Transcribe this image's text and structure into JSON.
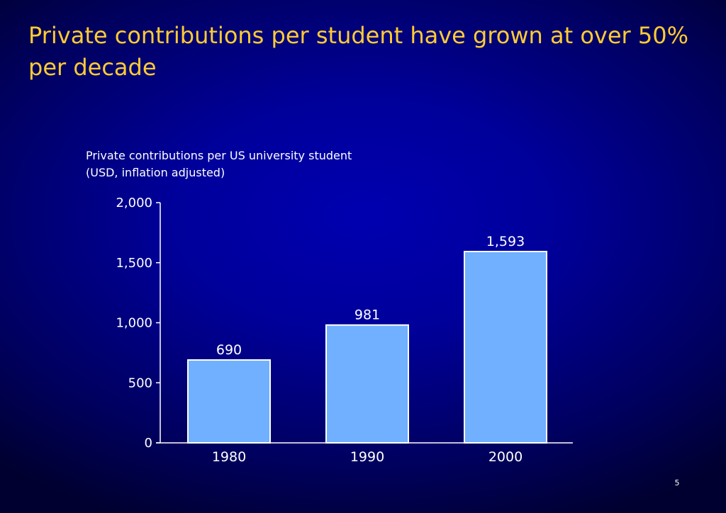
{
  "slide": {
    "title": "Private contributions per student have grown at over 50% per decade",
    "page_number": "5"
  },
  "chart_data": {
    "type": "bar",
    "title": "Private contributions per US university student (USD, inflation adjusted)",
    "xlabel": "",
    "ylabel": "",
    "categories": [
      "1980",
      "1990",
      "2000"
    ],
    "values": [
      690,
      981,
      1593
    ],
    "value_labels": [
      "690",
      "981",
      "1,593"
    ],
    "ylim": [
      0,
      2000
    ],
    "yticks": [
      0,
      500,
      1000,
      1500,
      2000
    ],
    "ytick_labels": [
      "0",
      "500",
      "1,000",
      "1,500",
      "2,000"
    ],
    "grid": false,
    "legend": "none",
    "colors": {
      "bar_fill": "#70b0ff",
      "bar_stroke": "#ffffff",
      "axis": "#ffffff",
      "text": "#ffffff",
      "title": "#ffcc33"
    }
  }
}
